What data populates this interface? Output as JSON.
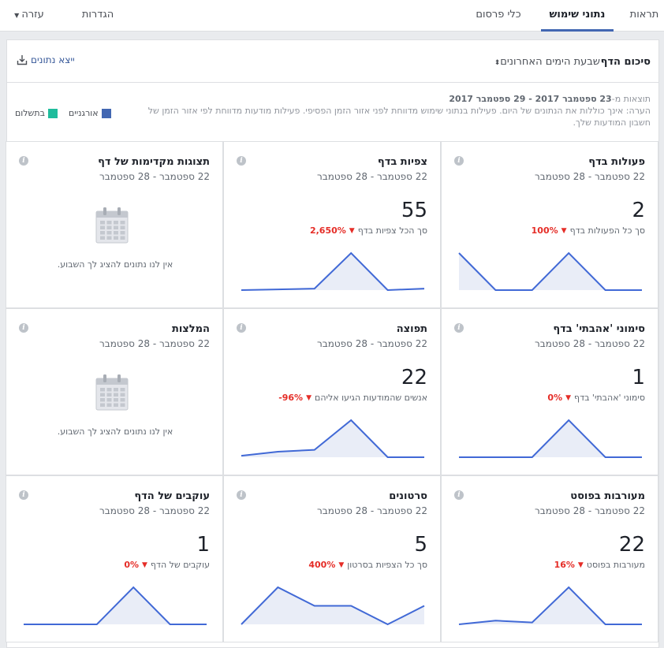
{
  "nav": {
    "tabs": [
      {
        "label": "תראות",
        "active": false
      },
      {
        "label": "נתוני שימוש",
        "active": true
      },
      {
        "label": "כלי פרסום",
        "active": false
      },
      {
        "label": "הגדרות",
        "active": false
      },
      {
        "label": "עזרה",
        "active": false
      }
    ]
  },
  "summary": {
    "title": "סיכום הדף",
    "range": "שבעת הימים האחרונים",
    "export_label": "ייצא נתונים"
  },
  "info": {
    "results_prefix": "תוצאות מ-",
    "results_dates": "23 ספטמבר 2017 - 29 ספטמבר 2017",
    "note": "הערה: אינך כוללות את הנתונים של היום. פעילות בנתוני שימוש מדווחת לפני אזור הזמן הפסיפי. פעילות מודעות מדווחת לפי אזור הזמן של חשבון המודעות שלך."
  },
  "legend": {
    "organic": {
      "label": "אורגניים",
      "color": "#4267b2"
    },
    "paid": {
      "label": "בתשלום",
      "color": "#1fbc9c"
    }
  },
  "colors": {
    "line": "#4169d6",
    "fill": "#e9edf7",
    "negative": "#e52d27"
  },
  "cards": [
    {
      "title": "פעולות בדף",
      "date": "22 ספטמבר - 28 ספטמבר",
      "value": "2",
      "sub": "סך כל הפעולות בדף",
      "pct": "100%",
      "spark": [
        0,
        0,
        1,
        0,
        0,
        1
      ]
    },
    {
      "title": "צפיות בדף",
      "date": "22 ספטמבר - 28 ספטמבר",
      "value": "55",
      "sub": "סך הכל צפיות בדף",
      "pct": "2,650%",
      "spark": [
        0.04,
        0,
        1,
        0.04,
        0.02,
        0
      ]
    },
    {
      "title": "תצוגות מקדימות של דף",
      "date": "22 ספטמבר - 28 ספטמבר",
      "nodata": "אין לנו נתונים להציג לך השבוע."
    },
    {
      "title": "סימוני 'אהבתי' בדף",
      "date": "22 ספטמבר - 28 ספטמבר",
      "value": "1",
      "sub": "סימוני 'אהבתי' בדף",
      "pct": "0%",
      "spark": [
        0,
        0,
        1,
        0,
        0,
        0
      ]
    },
    {
      "title": "תפוצה",
      "date": "22 ספטמבר - 28 ספטמבר",
      "value": "22",
      "sub": "אנשים שהמודעות הגיעו אליהם",
      "pct": "-96%",
      "spark": [
        0,
        0,
        1,
        0.2,
        0.15,
        0.04
      ]
    },
    {
      "title": "המלצות",
      "date": "22 ספטמבר - 28 ספטמבר",
      "nodata": "אין לנו נתונים להציג לך השבוע."
    },
    {
      "title": "מעורבות בפוסט",
      "date": "22 ספטמבר - 28 ספטמבר",
      "value": "22",
      "sub": "מעורבות בפוסט",
      "pct": "16%",
      "spark": [
        0,
        0,
        1,
        0.05,
        0.1,
        0
      ]
    },
    {
      "title": "סרטונים",
      "date": "22 ספטמבר - 28 ספטמבר",
      "value": "5",
      "sub": "סך כל הצפיות בסרטון",
      "pct": "400%",
      "spark": [
        0.5,
        0,
        0.5,
        0.5,
        1,
        0
      ]
    },
    {
      "title": "עוקבים של הדף",
      "date": "22 ספטמבר - 28 ספטמבר",
      "value": "1",
      "sub": "עוקבים של הדף",
      "pct": "0%",
      "spark": [
        0,
        0,
        1,
        0,
        0,
        0
      ]
    }
  ]
}
